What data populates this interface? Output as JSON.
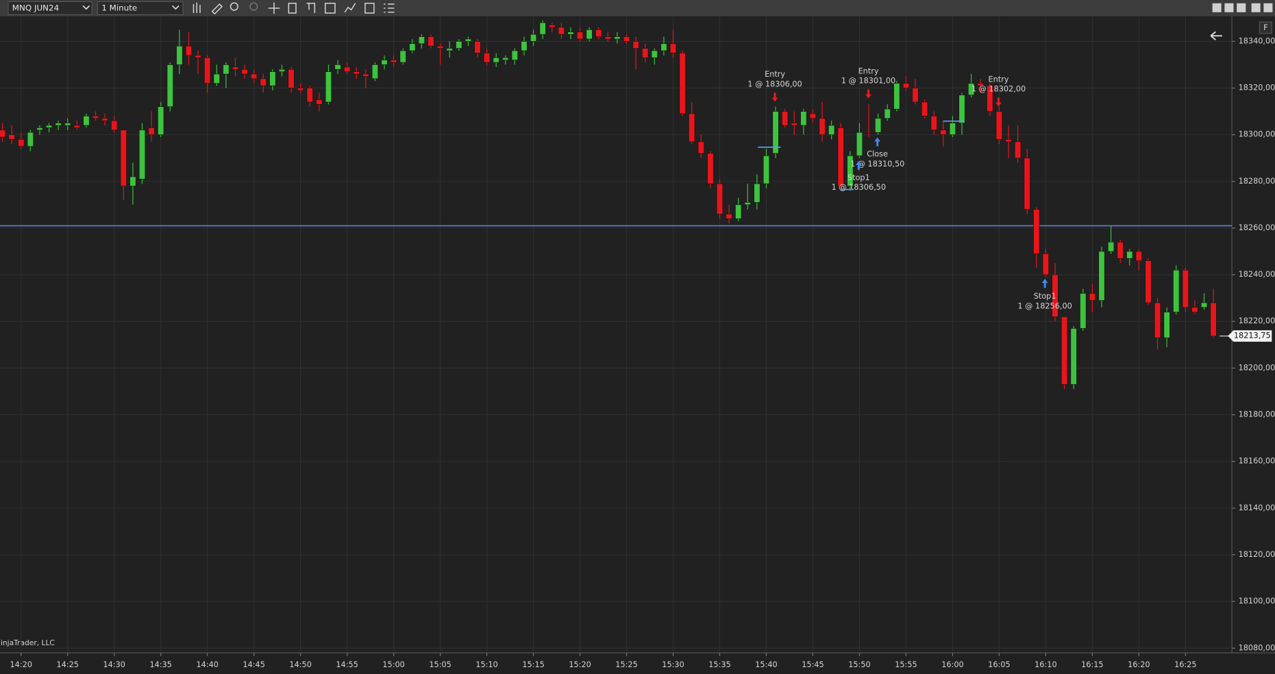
{
  "toolbar": {
    "instrument": "MNQ JUN24",
    "interval": "1 Minute"
  },
  "watermark": "NinjaTrader, LLC",
  "chart_data": {
    "type": "candlestick",
    "categories": [
      null,
      null,
      "14:20",
      null,
      null,
      null,
      null,
      "14:25",
      null,
      null,
      null,
      null,
      "14:30",
      null,
      null,
      null,
      null,
      "14:35",
      null,
      null,
      null,
      null,
      "14:40",
      null,
      null,
      null,
      null,
      "14:45",
      null,
      null,
      null,
      null,
      "14:50",
      null,
      null,
      null,
      null,
      "14:55",
      null,
      null,
      null,
      null,
      "15:00",
      null,
      null,
      null,
      null,
      "15:05",
      null,
      null,
      null,
      null,
      "15:10",
      null,
      null,
      null,
      null,
      "15:15",
      null,
      null,
      null,
      null,
      "15:20",
      null,
      null,
      null,
      null,
      "15:25",
      null,
      null,
      null,
      null,
      "15:30",
      null,
      null,
      null,
      null,
      "15:35",
      null,
      null,
      null,
      null,
      "15:40",
      null,
      null,
      null,
      null,
      "15:45",
      null,
      null,
      null,
      null,
      "15:50",
      null,
      null,
      null,
      null,
      "15:55",
      null,
      null,
      null,
      null,
      "16:00",
      null,
      null,
      null,
      null,
      "16:05",
      null,
      null,
      null,
      null,
      "16:10",
      null,
      null,
      null,
      null,
      "16:15",
      null,
      null,
      null,
      null,
      "16:20",
      null,
      null,
      null,
      null,
      "16:25",
      null,
      null,
      null
    ],
    "open": [
      18302,
      18300,
      18298,
      18295,
      18302,
      18303,
      18304,
      18304,
      18304,
      18304,
      18308,
      18307,
      18306,
      18302,
      18278,
      18281,
      18303,
      18300,
      18312,
      18330,
      18338,
      18334,
      18333,
      18322,
      18326,
      18329,
      18328,
      18326,
      18324,
      18321,
      18327,
      18328,
      18320,
      18320,
      18315,
      18314,
      18328,
      18329,
      18327,
      18326,
      18324,
      18330,
      18332,
      18331,
      18336,
      18339,
      18342,
      18338,
      18336,
      18337,
      18340,
      18340,
      18335,
      18331,
      18332,
      18332,
      18336,
      18340,
      18343,
      18347,
      18346,
      18343,
      18344,
      18341,
      18345,
      18342,
      18341,
      18342,
      18340,
      18337,
      18333,
      18336,
      18339,
      18335,
      18309,
      18297,
      18292,
      18279,
      18266,
      18264,
      18270,
      18271,
      18279,
      18292,
      18310,
      18305,
      18304,
      18309,
      18307,
      18300,
      18303,
      18278,
      18291,
      18301,
      18301,
      18307,
      18311,
      18322,
      18320,
      18314,
      18308,
      18302,
      18300,
      18305,
      18317,
      18322,
      18321,
      18310,
      18298,
      18297,
      18290,
      18268,
      18249,
      18240,
      18222,
      18193,
      18217,
      18232,
      18229,
      18250,
      18254,
      18247,
      18250,
      18246,
      18228,
      18213,
      18224,
      18242,
      18226,
      18226,
      18228
    ],
    "high": [
      18305,
      18304,
      18301,
      18302,
      18304,
      18305,
      18306,
      18307,
      18306,
      18309,
      18310,
      18309,
      18308,
      18302,
      18288,
      18305,
      18310,
      18314,
      18331,
      18345,
      18344,
      18336,
      18334,
      18330,
      18331,
      18333,
      18330,
      18328,
      18326,
      18328,
      18330,
      18329,
      18322,
      18321,
      18318,
      18330,
      18332,
      18331,
      18329,
      18328,
      18331,
      18334,
      18334,
      18337,
      18341,
      18343,
      18343,
      18339,
      18340,
      18341,
      18342,
      18341,
      18337,
      18335,
      18334,
      18337,
      18342,
      18345,
      18349,
      18348,
      18348,
      18346,
      18346,
      18346,
      18346,
      18344,
      18344,
      18343,
      18342,
      18339,
      18337,
      18342,
      18345,
      18336,
      18314,
      18300,
      18293,
      18281,
      18270,
      18273,
      18279,
      18283,
      18294,
      18312,
      18311,
      18310,
      18311,
      18311,
      18314,
      18306,
      18305,
      18293,
      18305,
      18313,
      18309,
      18313,
      18323,
      18325,
      18324,
      18315,
      18310,
      18306,
      18308,
      18318,
      18326,
      18324,
      18322,
      18312,
      18304,
      18304,
      18294,
      18269,
      18251,
      18245,
      18222,
      18218,
      18234,
      18236,
      18252,
      18261,
      18255,
      18251,
      18251,
      18247,
      18230,
      18226,
      18244,
      18243,
      18229,
      18232,
      18234
    ],
    "low": [
      18297,
      18296,
      18294,
      18293,
      18300,
      18301,
      18302,
      18302,
      18302,
      18303,
      18306,
      18304,
      18301,
      18272,
      18270,
      18279,
      18297,
      18299,
      18310,
      18326,
      18330,
      18326,
      18318,
      18321,
      18320,
      18325,
      18324,
      18322,
      18318,
      18319,
      18325,
      18318,
      18318,
      18312,
      18310,
      18313,
      18326,
      18326,
      18324,
      18320,
      18323,
      18328,
      18329,
      18330,
      18335,
      18337,
      18337,
      18330,
      18333,
      18336,
      18338,
      18333,
      18330,
      18329,
      18330,
      18330,
      18334,
      18338,
      18341,
      18344,
      18341,
      18341,
      18340,
      18340,
      18341,
      18340,
      18339,
      18339,
      18328,
      18331,
      18330,
      18334,
      18333,
      18308,
      18296,
      18290,
      18277,
      18264,
      18262,
      18263,
      18268,
      18268,
      18277,
      18290,
      18303,
      18300,
      18300,
      18305,
      18297,
      18298,
      18277,
      18276,
      18290,
      18299,
      18300,
      18306,
      18310,
      18319,
      18313,
      18307,
      18300,
      18295,
      18299,
      18300,
      18316,
      18318,
      18308,
      18296,
      18290,
      18288,
      18266,
      18243,
      18239,
      18220,
      18191,
      18191,
      18216,
      18224,
      18226,
      18249,
      18245,
      18244,
      18242,
      18227,
      18208,
      18209,
      18223,
      18224,
      18223,
      18225,
      18213
    ],
    "close": [
      18299,
      18298,
      18295,
      18301,
      18303,
      18304,
      18305,
      18305,
      18303,
      18308,
      18307,
      18306,
      18302,
      18278,
      18282,
      18302,
      18300,
      18312,
      18330,
      18338,
      18334,
      18333,
      18322,
      18326,
      18330,
      18328,
      18326,
      18324,
      18321,
      18327,
      18328,
      18320,
      18319,
      18314,
      18313,
      18327,
      18330,
      18327,
      18326,
      18325,
      18330,
      18332,
      18331,
      18336,
      18339,
      18342,
      18338,
      18337,
      18337,
      18340,
      18341,
      18335,
      18331,
      18333,
      18333,
      18336,
      18340,
      18343,
      18348,
      18346,
      18343,
      18344,
      18341,
      18345,
      18342,
      18341,
      18342,
      18340,
      18337,
      18333,
      18336,
      18339,
      18335,
      18309,
      18297,
      18292,
      18279,
      18266,
      18264,
      18270,
      18271,
      18279,
      18291,
      18310,
      18304,
      18304,
      18310,
      18307,
      18300,
      18304,
      18278,
      18291,
      18301,
      18301,
      18307,
      18311,
      18322,
      18320,
      18314,
      18308,
      18302,
      18300,
      18305,
      18317,
      18322,
      18321,
      18310,
      18298,
      18297,
      18290,
      18268,
      18249,
      18240,
      18222,
      18193,
      18217,
      18232,
      18229,
      18250,
      18254,
      18247,
      18250,
      18246,
      18228,
      18213,
      18224,
      18242,
      18226,
      18224,
      18228,
      18213.75
    ],
    "up_color": "#3ec33e",
    "down_color": "#e8161c",
    "ylim": [
      18078,
      18349
    ],
    "yticks": [
      {
        "value": 18080,
        "label": "18080,00"
      },
      {
        "value": 18100,
        "label": "18100,00"
      },
      {
        "value": 18120,
        "label": "18120,00"
      },
      {
        "value": 18140,
        "label": "18140,00"
      },
      {
        "value": 18160,
        "label": "18160,00"
      },
      {
        "value": 18180,
        "label": "18180,00"
      },
      {
        "value": 18200,
        "label": "18200,00"
      },
      {
        "value": 18220,
        "label": "18220,00"
      },
      {
        "value": 18240,
        "label": "18240,00"
      },
      {
        "value": 18260,
        "label": "18260,00"
      },
      {
        "value": 18280,
        "label": "18280,00"
      },
      {
        "value": 18300,
        "label": "18300,00"
      },
      {
        "value": 18320,
        "label": "18320,00"
      },
      {
        "value": 18340,
        "label": "18340,00"
      }
    ],
    "grid": true,
    "horizontal_line": 18261,
    "horizontal_line_color": "#5b82e6",
    "last_price": {
      "value": 18213.75,
      "label": "18213,75"
    },
    "trade_markers": [
      {
        "title": "Entry",
        "detail": "1 @ 18306,00"
      },
      {
        "title": "Entry",
        "detail": "1 @ 18301,00"
      },
      {
        "title": "Entry",
        "detail": "1 @ 18302,00"
      },
      {
        "title": "Close",
        "detail": "1 @ 18310,50"
      },
      {
        "title": "Stop1",
        "detail": "1 @ 18306,50"
      },
      {
        "title": "Stop1",
        "detail": "1 @ 18256,00"
      }
    ]
  }
}
